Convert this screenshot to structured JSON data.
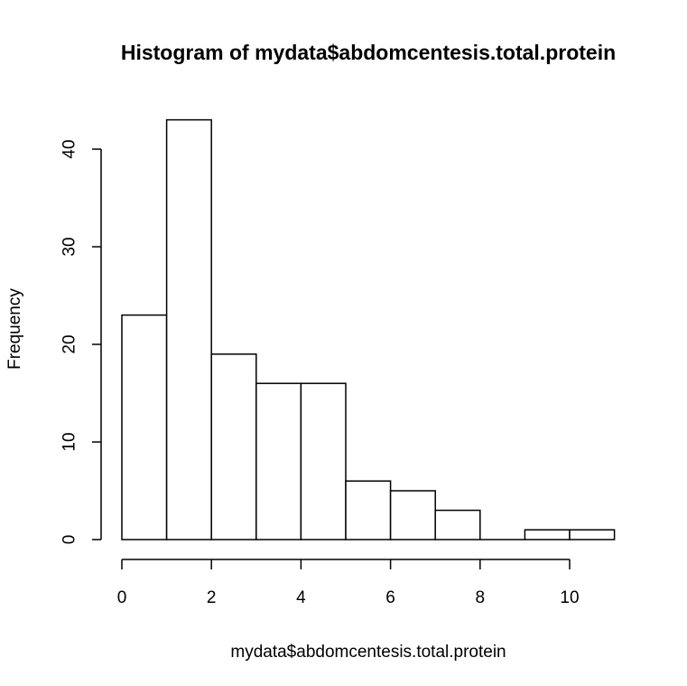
{
  "chart_data": {
    "type": "bar",
    "title": "Histogram of mydata$abdomcentesis.total.protein",
    "xlabel": "mydata$abdomcentesis.total.protein",
    "ylabel": "Frequency",
    "bins": [
      {
        "x0": 0,
        "x1": 1,
        "count": 23
      },
      {
        "x0": 1,
        "x1": 2,
        "count": 43
      },
      {
        "x0": 2,
        "x1": 3,
        "count": 19
      },
      {
        "x0": 3,
        "x1": 4,
        "count": 16
      },
      {
        "x0": 4,
        "x1": 5,
        "count": 16
      },
      {
        "x0": 5,
        "x1": 6,
        "count": 6
      },
      {
        "x0": 6,
        "x1": 7,
        "count": 5
      },
      {
        "x0": 7,
        "x1": 8,
        "count": 3
      },
      {
        "x0": 8,
        "x1": 9,
        "count": 0
      },
      {
        "x0": 9,
        "x1": 10,
        "count": 1
      },
      {
        "x0": 10,
        "x1": 11,
        "count": 1
      }
    ],
    "x_ticks": [
      0,
      2,
      4,
      6,
      8,
      10
    ],
    "y_ticks": [
      0,
      10,
      20,
      30,
      40
    ],
    "xlim": [
      0,
      11
    ],
    "ylim": [
      0,
      43
    ],
    "grid": false,
    "bar_fill": "#ffffff",
    "bar_stroke": "#000000"
  }
}
